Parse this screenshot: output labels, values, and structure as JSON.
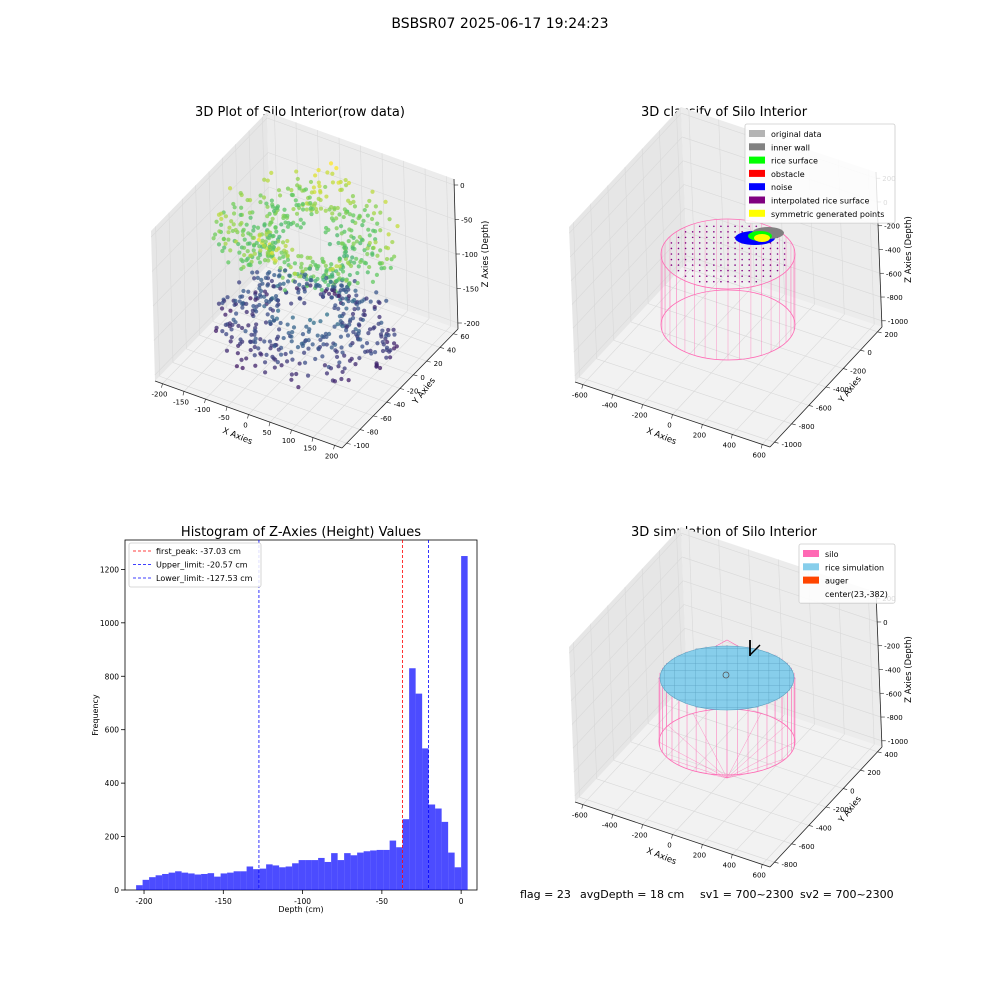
{
  "figure": {
    "suptitle": "BSBSR07 2025-06-17 19:24:23",
    "footer": {
      "flag": "flag = 23",
      "avg_depth": "avgDepth = 18 cm",
      "sv1": "sv1 = 700~2300",
      "sv2": "sv2 = 700~2300"
    }
  },
  "chart_data": [
    {
      "type": "scatter",
      "projection": "3d",
      "title": "3D Plot of Silo Interior(row data)",
      "xlabel": "X Axies",
      "ylabel": "Y Axies",
      "zlabel": "Z Axies (Depth)",
      "x_ticks": [
        -200,
        -150,
        -100,
        -50,
        0,
        50,
        100,
        150,
        200
      ],
      "y_ticks": [
        -100,
        -80,
        -60,
        -40,
        -20,
        0,
        20,
        40,
        60
      ],
      "z_ticks": [
        0,
        -50,
        -100,
        -150,
        -200
      ],
      "xlim": [
        -210,
        210
      ],
      "ylim": [
        -100,
        65
      ],
      "zlim": [
        -215,
        0
      ],
      "colormap": "viridis"
    },
    {
      "type": "scatter",
      "projection": "3d",
      "title": "3D classify of Silo Interior",
      "xlabel": "X Axies",
      "ylabel": "Y Axies",
      "zlabel": "Z Axies (Depth)",
      "x_ticks": [
        -600,
        -400,
        -200,
        0,
        200,
        400,
        600
      ],
      "y_ticks": [
        -1000,
        -800,
        -600,
        -400,
        -200,
        0,
        200
      ],
      "z_ticks": [
        200,
        0,
        -200,
        -400,
        -600,
        -800,
        -1000
      ],
      "legend": [
        {
          "label": "original data",
          "color": "#b3b3b3"
        },
        {
          "label": "inner wall",
          "color": "#808080"
        },
        {
          "label": "rice surface",
          "color": "#00ff00"
        },
        {
          "label": "obstacle",
          "color": "#ff0000"
        },
        {
          "label": "noise",
          "color": "#0000ff"
        },
        {
          "label": "interpolated rice surface",
          "color": "#800080"
        },
        {
          "label": "symmetric generated points",
          "color": "#ffff00"
        }
      ],
      "legend_loc": "upper right"
    },
    {
      "type": "bar",
      "title": "Histogram of Z-Axies (Height) Values",
      "xlabel": "Depth (cm)",
      "ylabel": "Frequency",
      "xlim": [
        -212,
        10
      ],
      "ylim": [
        0,
        1310
      ],
      "x_ticks": [
        -200,
        -150,
        -100,
        -50,
        0
      ],
      "y_ticks": [
        0,
        200,
        400,
        600,
        800,
        1000,
        1200
      ],
      "bin_start": -205,
      "bin_width": 4.1,
      "values": [
        18,
        38,
        48,
        55,
        60,
        65,
        70,
        65,
        62,
        58,
        60,
        63,
        50,
        62,
        65,
        70,
        70,
        88,
        78,
        80,
        96,
        92,
        85,
        88,
        100,
        112,
        112,
        112,
        120,
        105,
        138,
        112,
        138,
        130,
        140,
        145,
        148,
        150,
        150,
        185,
        160,
        265,
        830,
        735,
        530,
        320,
        305,
        255,
        140,
        85,
        1250
      ],
      "bar_color": "#0000ff",
      "lines": [
        {
          "label": "first_peak: -37.03 cm",
          "x": -37.03,
          "color": "#ff0000"
        },
        {
          "label": "Upper_limit: -20.57 cm",
          "x": -20.57,
          "color": "#0000ff"
        },
        {
          "label": "Lower_limit: -127.53 cm",
          "x": -127.53,
          "color": "#0000ff"
        }
      ],
      "legend_loc": "upper left"
    },
    {
      "type": "scatter",
      "projection": "3d",
      "title": "3D simulation of Silo Interior",
      "xlabel": "X Axies",
      "ylabel": "Y Axies",
      "zlabel": "Z Axies (Depth)",
      "x_ticks": [
        -600,
        -400,
        -200,
        0,
        200,
        400,
        600
      ],
      "y_ticks": [
        -800,
        -600,
        -400,
        -200,
        0,
        200,
        400
      ],
      "z_ticks": [
        200,
        0,
        -200,
        -400,
        -600,
        -800,
        -1000
      ],
      "legend": [
        {
          "label": "silo",
          "color": "#ff69b4"
        },
        {
          "label": "rice simulation",
          "color": "#87ceeb"
        },
        {
          "label": "auger",
          "color": "#ff4500"
        },
        {
          "label": "center(23,-382)",
          "color": ""
        }
      ],
      "legend_loc": "upper right"
    }
  ]
}
